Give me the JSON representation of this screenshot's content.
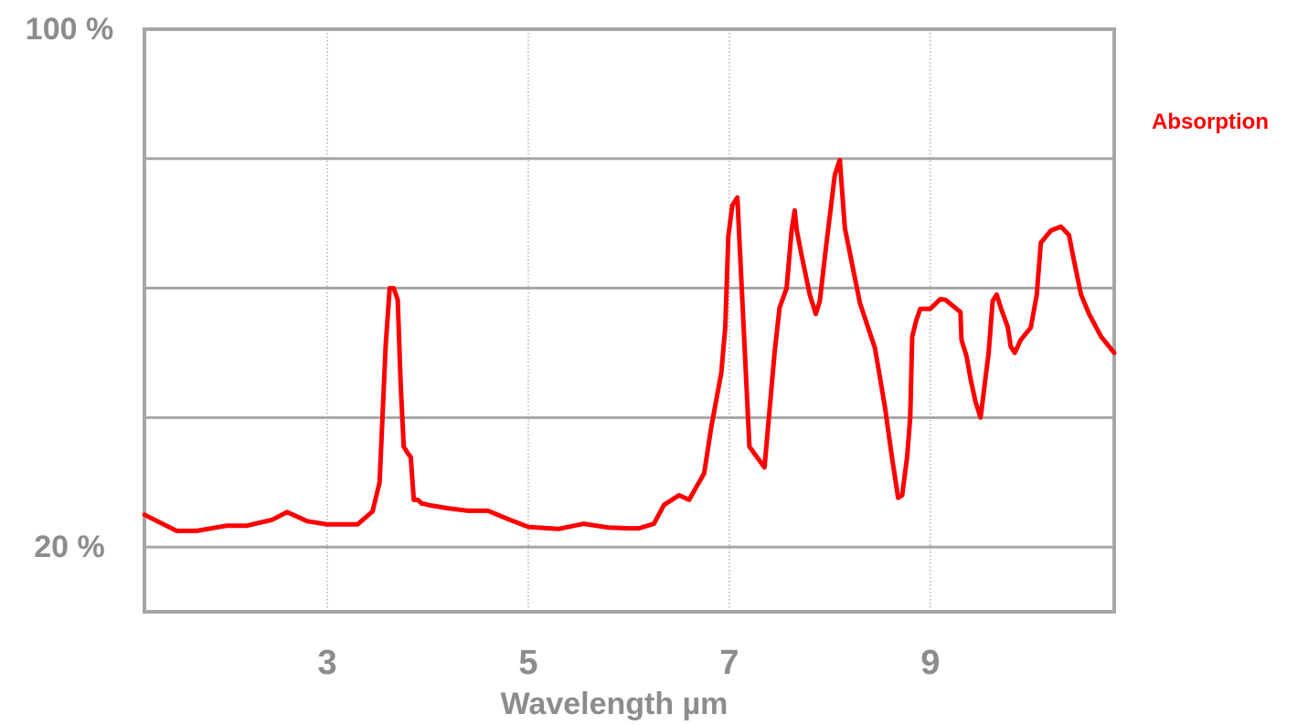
{
  "chart_data": {
    "type": "line",
    "title": "",
    "xlabel": "Wavelength µm",
    "ylabel": "",
    "x_ticks": [
      "3",
      "5",
      "7",
      "9"
    ],
    "y_ticks": [
      "100 %",
      "20 %"
    ],
    "xlim": [
      1.18,
      10.83
    ],
    "ylim": [
      10,
      100
    ],
    "grid": true,
    "legend_position": "right",
    "series": [
      {
        "name": "Absorption",
        "color": "#ff0000",
        "x": [
          1.18,
          1.5,
          1.7,
          2.0,
          2.2,
          2.45,
          2.6,
          2.8,
          3.0,
          3.15,
          3.3,
          3.45,
          3.52,
          3.58,
          3.62,
          3.66,
          3.7,
          3.73,
          3.76,
          3.8,
          3.83,
          3.86,
          3.9,
          3.94,
          3.96,
          4.0,
          4.2,
          4.4,
          4.6,
          4.8,
          5.0,
          5.3,
          5.55,
          5.8,
          6.0,
          6.1,
          6.25,
          6.35,
          6.5,
          6.6,
          6.75,
          6.82,
          6.92,
          6.96,
          6.99,
          7.03,
          7.08,
          7.2,
          7.35,
          7.45,
          7.5,
          7.57,
          7.62,
          7.65,
          7.67,
          7.72,
          7.8,
          7.86,
          7.9,
          7.96,
          8.05,
          8.1,
          8.15,
          8.3,
          8.45,
          8.55,
          8.62,
          8.68,
          8.72,
          8.77,
          8.8,
          8.82,
          8.86,
          8.9,
          9.0,
          9.1,
          9.15,
          9.3,
          9.31,
          9.36,
          9.4,
          9.45,
          9.5,
          9.58,
          9.62,
          9.66,
          9.7,
          9.77,
          9.8,
          9.84,
          9.9,
          10.0,
          10.06,
          10.1,
          10.2,
          10.3,
          10.38,
          10.42,
          10.5,
          10.58,
          10.7,
          10.83
        ],
        "y": [
          25,
          22.5,
          22.5,
          23.3,
          23.3,
          24.2,
          25.4,
          24,
          23.5,
          23.5,
          23.5,
          25.5,
          30,
          51,
          60,
          60,
          58.2,
          45,
          35.5,
          34.5,
          33.9,
          27.3,
          27.3,
          26.7,
          26.7,
          26.5,
          26,
          25.6,
          25.6,
          24.3,
          23.1,
          22.8,
          23.6,
          23,
          22.9,
          22.9,
          23.6,
          26.5,
          28,
          27.3,
          31.4,
          38.5,
          46.9,
          54,
          68,
          72.8,
          74,
          35.5,
          32.3,
          50,
          57,
          60,
          69,
          72,
          69,
          65,
          59,
          56,
          58,
          66,
          77.5,
          79.8,
          69.3,
          57.7,
          50.7,
          41.5,
          33.7,
          27.6,
          28,
          34,
          40,
          52.5,
          55,
          56.8,
          56.8,
          58.3,
          58.2,
          56.3,
          52,
          49.5,
          46,
          42.4,
          40,
          50,
          58,
          59,
          57,
          54,
          51,
          50,
          52,
          53.9,
          59,
          67,
          68.9,
          69.5,
          68.2,
          65,
          59,
          56,
          52.5,
          50
        ]
      }
    ]
  }
}
